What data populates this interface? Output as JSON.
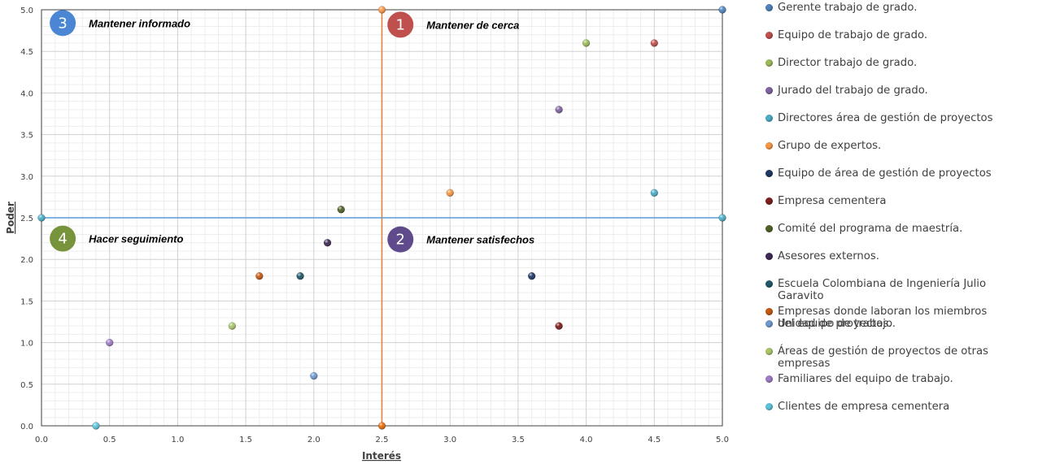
{
  "chart_data": {
    "type": "scatter",
    "xlabel": "Interés",
    "ylabel": "Poder",
    "xlim": [
      0,
      5
    ],
    "ylim": [
      0,
      5
    ],
    "xticks": [
      "0.0",
      "0.5",
      "1.0",
      "1.5",
      "2.0",
      "2.5",
      "3.0",
      "3.5",
      "4.0",
      "4.5",
      "5.0"
    ],
    "yticks": [
      "0.0",
      "0.5",
      "1.0",
      "1.5",
      "2.0",
      "2.5",
      "3.0",
      "3.5",
      "4.0",
      "4.5",
      "5.0"
    ],
    "grid": true,
    "legend_position": "right",
    "divider_lines": [
      {
        "orientation": "vertical",
        "x": 2.5,
        "color": "#ED7D31"
      },
      {
        "orientation": "horizontal",
        "y": 2.5,
        "color": "#5B9BD5"
      }
    ],
    "quadrants": [
      {
        "number": "1",
        "label": "Mantener de cerca",
        "color": "#C0504D",
        "x": 2.63,
        "y": 4.82
      },
      {
        "number": "2",
        "label": "Mantener satisfechos",
        "color": "#5F4B8B",
        "x": 2.63,
        "y": 2.24
      },
      {
        "number": "3",
        "label": "Mantener informado",
        "color": "#4A86D4",
        "x": 0.15,
        "y": 4.84
      },
      {
        "number": "4",
        "label": "Hacer seguimiento",
        "color": "#77933C",
        "x": 0.15,
        "y": 2.25
      }
    ],
    "series": [
      {
        "name": "Gerente trabajo de grado.",
        "color": "#4F81BD",
        "points": [
          [
            5.0,
            5.0
          ]
        ]
      },
      {
        "name": "Equipo de trabajo de grado.",
        "color": "#C0504D",
        "points": [
          [
            4.5,
            4.6
          ]
        ]
      },
      {
        "name": "Director trabajo de grado.",
        "color": "#9BBB59",
        "points": [
          [
            4.0,
            4.6
          ]
        ]
      },
      {
        "name": "Jurado del trabajo de grado.",
        "color": "#8064A2",
        "points": [
          [
            3.8,
            3.8
          ]
        ]
      },
      {
        "name": "Directores área de gestión de proyectos",
        "color": "#4BACC6",
        "points": [
          [
            4.5,
            2.8
          ]
        ]
      },
      {
        "name": "Grupo de expertos.",
        "color": "#F79646",
        "points": [
          [
            3.0,
            2.8
          ]
        ]
      },
      {
        "name": "Equipo de área de gestión de proyectos",
        "color": "#1F3864",
        "points": [
          [
            3.6,
            1.8
          ]
        ]
      },
      {
        "name": "Empresa cementera",
        "color": "#7F1F1F",
        "points": [
          [
            3.8,
            1.2
          ]
        ]
      },
      {
        "name": "Comité del programa de maestría.",
        "color": "#4F6228",
        "points": [
          [
            2.2,
            2.6
          ]
        ]
      },
      {
        "name": "Asesores externos.",
        "color": "#3F2A56",
        "points": [
          [
            2.1,
            2.2
          ]
        ]
      },
      {
        "name": "Escuela Colombiana de Ingeniería Julio Garavito",
        "color": "#215968",
        "points": [
          [
            1.9,
            1.8
          ]
        ]
      },
      {
        "name": "Empresas donde laboran los miembros del equipo de trabajo.",
        "color": "#C55A11",
        "points": [
          [
            1.6,
            1.8
          ]
        ]
      },
      {
        "name": "Unidad de proyectos.",
        "color": "#6E9AD0",
        "points": [
          [
            2.0,
            0.6
          ]
        ]
      },
      {
        "name": "Áreas de gestión de proyectos de otras empresas",
        "color": "#A9C46A",
        "points": [
          [
            1.4,
            1.2
          ]
        ]
      },
      {
        "name": "Familiares del equipo de trabajo.",
        "color": "#A07CC8",
        "points": [
          [
            0.5,
            1.0
          ]
        ]
      },
      {
        "name": "Clientes de empresa cementera",
        "color": "#5BC3DA",
        "points": [
          [
            0.4,
            0.0
          ]
        ]
      }
    ],
    "line_endpoints": [
      {
        "x": 0.0,
        "y": 2.5,
        "color": "#4BACC6"
      },
      {
        "x": 5.0,
        "y": 2.5,
        "color": "#4BACC6"
      },
      {
        "x": 2.5,
        "y": 5.0,
        "color": "#F79646"
      },
      {
        "x": 2.5,
        "y": 0.0,
        "color": "#E46C0A"
      }
    ]
  }
}
